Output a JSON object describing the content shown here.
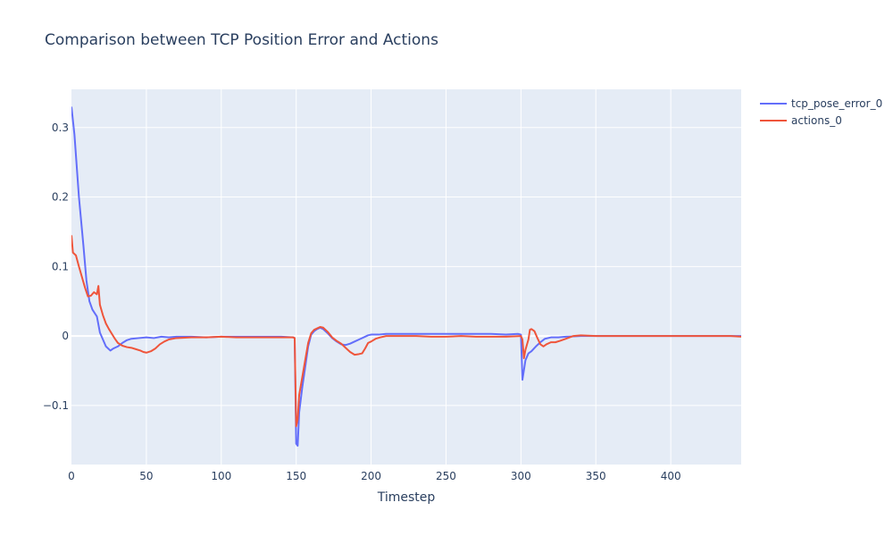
{
  "chart_data": {
    "type": "line",
    "title": "Comparison between TCP Position Error and Actions",
    "xlabel": "Timestep",
    "ylabel": "",
    "xlim": [
      0,
      447
    ],
    "ylim": [
      -0.185,
      0.355
    ],
    "x_ticks": [
      0,
      50,
      100,
      150,
      200,
      250,
      300,
      350,
      400
    ],
    "y_ticks": [
      -0.1,
      0,
      0.1,
      0.2,
      0.3
    ],
    "y_tick_labels": [
      "−0.1",
      "0",
      "0.1",
      "0.2",
      "0.3"
    ],
    "grid": true,
    "legend_position": "top-right",
    "background_color": "#e5ecf6",
    "series": [
      {
        "name": "tcp_pose_error_0",
        "color": "#636efa",
        "points": [
          [
            0,
            0.33
          ],
          [
            2,
            0.29
          ],
          [
            5,
            0.2
          ],
          [
            8,
            0.13
          ],
          [
            10,
            0.08
          ],
          [
            12,
            0.05
          ],
          [
            14,
            0.038
          ],
          [
            17,
            0.028
          ],
          [
            19,
            0.005
          ],
          [
            21,
            -0.005
          ],
          [
            23,
            -0.015
          ],
          [
            26,
            -0.021
          ],
          [
            28,
            -0.018
          ],
          [
            31,
            -0.015
          ],
          [
            34,
            -0.01
          ],
          [
            37,
            -0.006
          ],
          [
            40,
            -0.004
          ],
          [
            45,
            -0.003
          ],
          [
            50,
            -0.002
          ],
          [
            55,
            -0.003
          ],
          [
            60,
            -0.001
          ],
          [
            65,
            -0.002
          ],
          [
            70,
            -0.001
          ],
          [
            80,
            -0.001
          ],
          [
            90,
            -0.002
          ],
          [
            100,
            -0.001
          ],
          [
            110,
            -0.001
          ],
          [
            120,
            -0.001
          ],
          [
            130,
            -0.001
          ],
          [
            140,
            -0.001
          ],
          [
            148,
            -0.002
          ],
          [
            149,
            -0.003
          ],
          [
            150,
            -0.155
          ],
          [
            151,
            -0.158
          ],
          [
            152,
            -0.11
          ],
          [
            154,
            -0.075
          ],
          [
            156,
            -0.045
          ],
          [
            158,
            -0.015
          ],
          [
            160,
            0.002
          ],
          [
            162,
            0.007
          ],
          [
            164,
            0.01
          ],
          [
            166,
            0.012
          ],
          [
            168,
            0.01
          ],
          [
            171,
            0.004
          ],
          [
            174,
            -0.003
          ],
          [
            177,
            -0.008
          ],
          [
            180,
            -0.012
          ],
          [
            183,
            -0.013
          ],
          [
            186,
            -0.011
          ],
          [
            189,
            -0.008
          ],
          [
            192,
            -0.005
          ],
          [
            195,
            -0.002
          ],
          [
            198,
            0.001
          ],
          [
            200,
            0.002
          ],
          [
            205,
            0.002
          ],
          [
            210,
            0.003
          ],
          [
            220,
            0.003
          ],
          [
            230,
            0.003
          ],
          [
            240,
            0.003
          ],
          [
            250,
            0.003
          ],
          [
            260,
            0.003
          ],
          [
            270,
            0.003
          ],
          [
            280,
            0.003
          ],
          [
            290,
            0.002
          ],
          [
            298,
            0.003
          ],
          [
            300,
            0.002
          ],
          [
            301,
            -0.063
          ],
          [
            303,
            -0.035
          ],
          [
            305,
            -0.025
          ],
          [
            307,
            -0.022
          ],
          [
            310,
            -0.015
          ],
          [
            313,
            -0.009
          ],
          [
            316,
            -0.004
          ],
          [
            320,
            -0.002
          ],
          [
            325,
            -0.002
          ],
          [
            330,
            -0.001
          ],
          [
            340,
            0.0
          ],
          [
            350,
            0.0
          ],
          [
            360,
            0.0
          ],
          [
            370,
            0.0
          ],
          [
            380,
            0.0
          ],
          [
            390,
            0.0
          ],
          [
            400,
            0.0
          ],
          [
            410,
            0.0
          ],
          [
            420,
            0.0
          ],
          [
            430,
            0.0
          ],
          [
            440,
            0.0
          ],
          [
            447,
            0.0
          ]
        ]
      },
      {
        "name": "actions_0",
        "color": "#ef553b",
        "points": [
          [
            0,
            0.145
          ],
          [
            1,
            0.12
          ],
          [
            3,
            0.116
          ],
          [
            5,
            0.1
          ],
          [
            7,
            0.085
          ],
          [
            9,
            0.07
          ],
          [
            11,
            0.057
          ],
          [
            13,
            0.058
          ],
          [
            15,
            0.063
          ],
          [
            17,
            0.06
          ],
          [
            18,
            0.072
          ],
          [
            19,
            0.045
          ],
          [
            21,
            0.03
          ],
          [
            23,
            0.018
          ],
          [
            25,
            0.01
          ],
          [
            27,
            0.003
          ],
          [
            29,
            -0.004
          ],
          [
            31,
            -0.01
          ],
          [
            34,
            -0.014
          ],
          [
            37,
            -0.016
          ],
          [
            40,
            -0.017
          ],
          [
            43,
            -0.019
          ],
          [
            46,
            -0.021
          ],
          [
            48,
            -0.023
          ],
          [
            50,
            -0.024
          ],
          [
            53,
            -0.022
          ],
          [
            56,
            -0.018
          ],
          [
            59,
            -0.012
          ],
          [
            62,
            -0.008
          ],
          [
            65,
            -0.005
          ],
          [
            70,
            -0.003
          ],
          [
            80,
            -0.002
          ],
          [
            90,
            -0.002
          ],
          [
            100,
            -0.001
          ],
          [
            110,
            -0.002
          ],
          [
            120,
            -0.002
          ],
          [
            130,
            -0.002
          ],
          [
            140,
            -0.002
          ],
          [
            148,
            -0.002
          ],
          [
            149,
            -0.003
          ],
          [
            150,
            -0.13
          ],
          [
            151,
            -0.12
          ],
          [
            152,
            -0.085
          ],
          [
            154,
            -0.06
          ],
          [
            156,
            -0.035
          ],
          [
            158,
            -0.01
          ],
          [
            160,
            0.004
          ],
          [
            162,
            0.009
          ],
          [
            164,
            0.011
          ],
          [
            166,
            0.013
          ],
          [
            168,
            0.012
          ],
          [
            171,
            0.006
          ],
          [
            174,
            -0.002
          ],
          [
            177,
            -0.007
          ],
          [
            180,
            -0.011
          ],
          [
            183,
            -0.017
          ],
          [
            186,
            -0.023
          ],
          [
            189,
            -0.027
          ],
          [
            192,
            -0.026
          ],
          [
            194,
            -0.025
          ],
          [
            196,
            -0.018
          ],
          [
            198,
            -0.01
          ],
          [
            200,
            -0.008
          ],
          [
            203,
            -0.004
          ],
          [
            206,
            -0.002
          ],
          [
            210,
            0.0
          ],
          [
            220,
            0.0
          ],
          [
            230,
            0.0
          ],
          [
            240,
            -0.001
          ],
          [
            250,
            -0.001
          ],
          [
            260,
            0.0
          ],
          [
            270,
            -0.001
          ],
          [
            280,
            -0.001
          ],
          [
            290,
            -0.001
          ],
          [
            300,
            0.0
          ],
          [
            301,
            -0.005
          ],
          [
            302,
            -0.032
          ],
          [
            303,
            -0.02
          ],
          [
            305,
            -0.005
          ],
          [
            306,
            0.009
          ],
          [
            307,
            0.01
          ],
          [
            309,
            0.007
          ],
          [
            311,
            -0.003
          ],
          [
            313,
            -0.012
          ],
          [
            315,
            -0.015
          ],
          [
            317,
            -0.012
          ],
          [
            320,
            -0.009
          ],
          [
            323,
            -0.009
          ],
          [
            326,
            -0.007
          ],
          [
            330,
            -0.004
          ],
          [
            335,
            0.0
          ],
          [
            340,
            0.001
          ],
          [
            350,
            0.0
          ],
          [
            360,
            0.0
          ],
          [
            370,
            0.0
          ],
          [
            380,
            0.0
          ],
          [
            390,
            0.0
          ],
          [
            400,
            0.0
          ],
          [
            410,
            0.0
          ],
          [
            420,
            0.0
          ],
          [
            430,
            0.0
          ],
          [
            440,
            0.0
          ],
          [
            447,
            -0.001
          ]
        ]
      }
    ]
  }
}
